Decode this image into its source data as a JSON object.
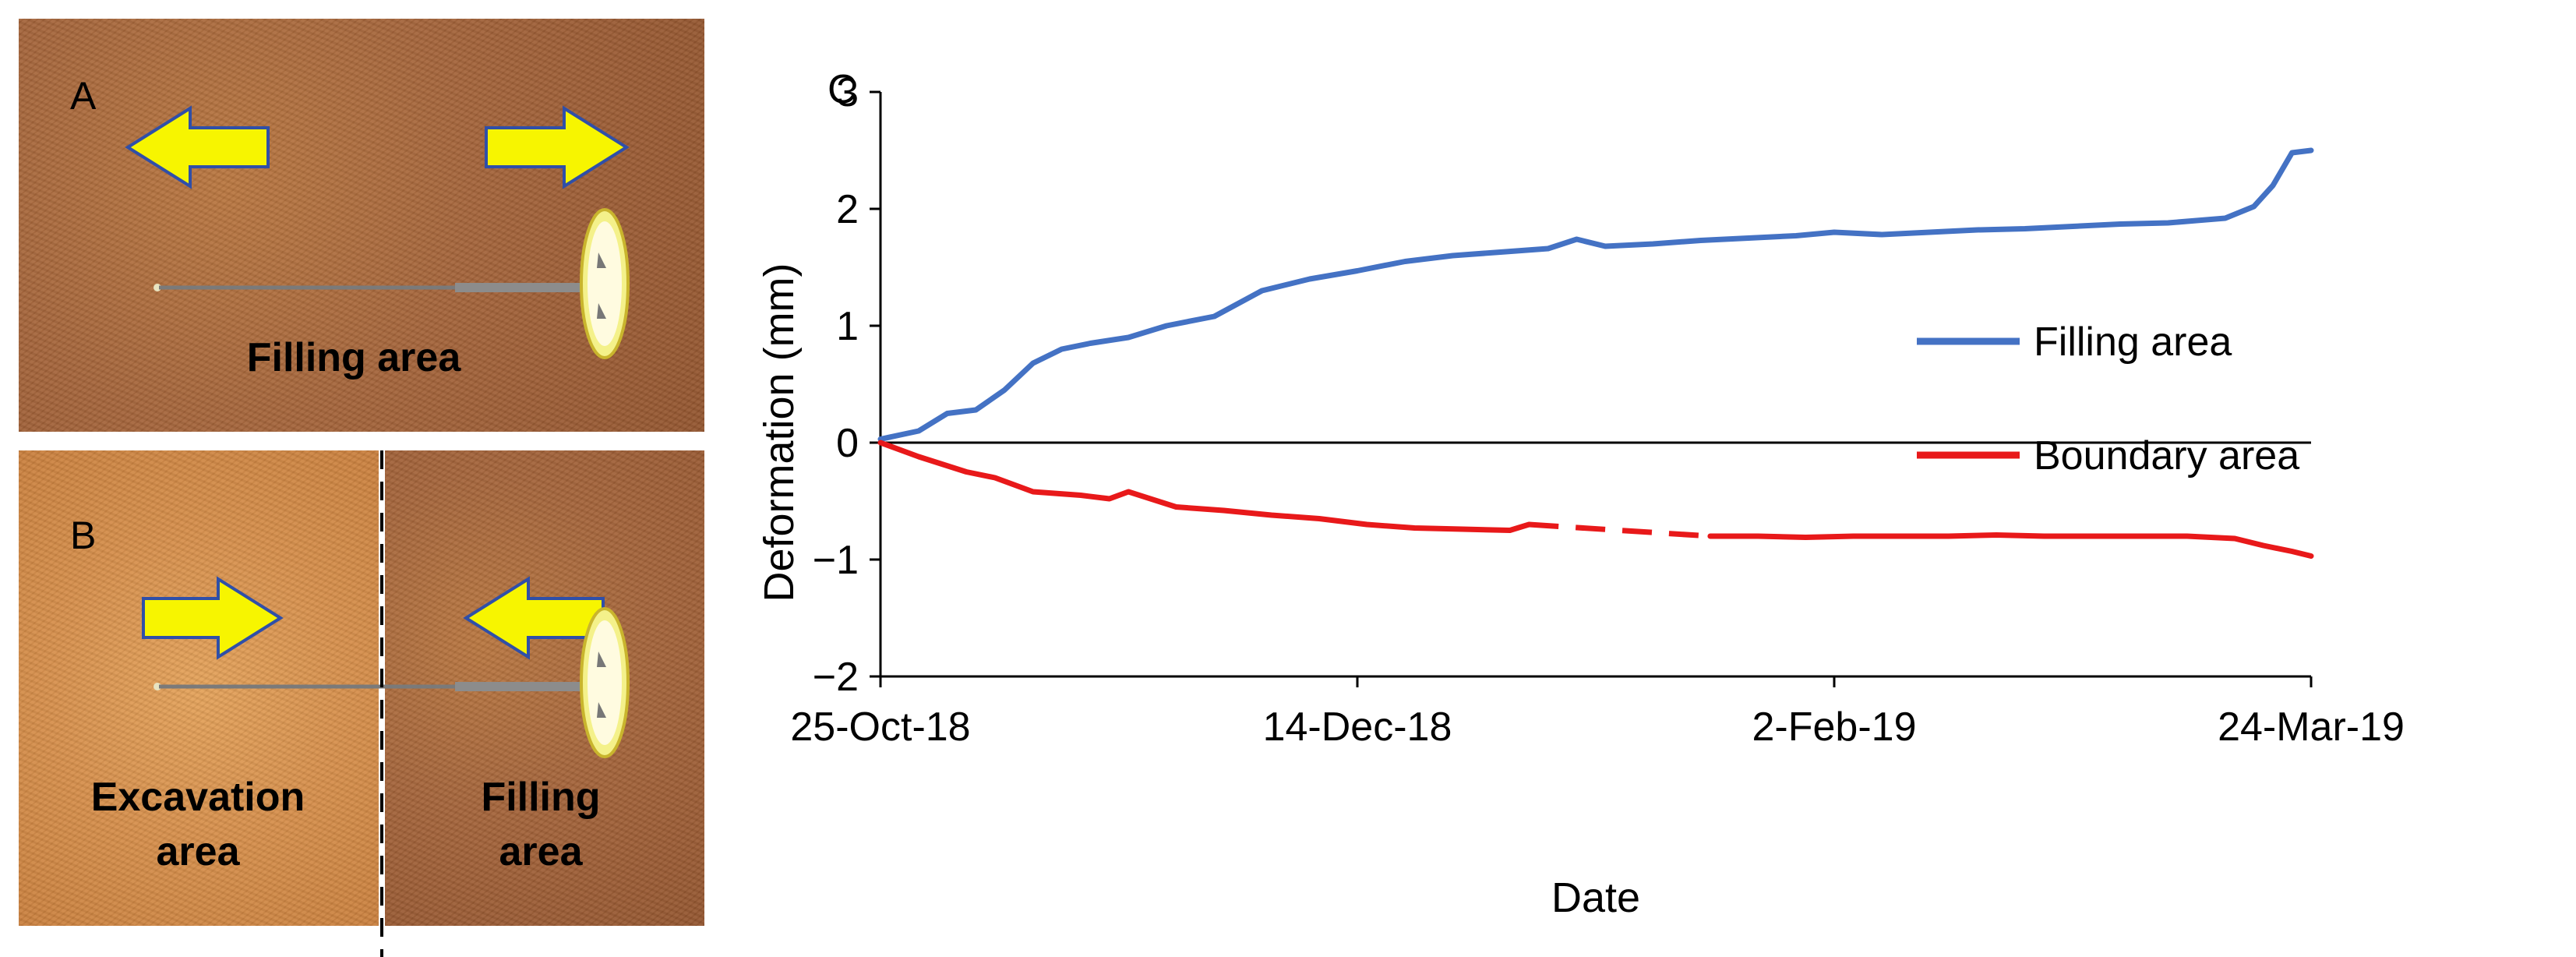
{
  "panels": {
    "a": {
      "letter": "A",
      "label": "Filling area"
    },
    "b": {
      "letter": "B",
      "label_left": "Excavation\narea",
      "label_right": "Filling\narea"
    },
    "c": {
      "letter": "C"
    }
  },
  "colors": {
    "arrow_fill": "#f7f500",
    "arrow_stroke": "#2f4fa8",
    "blue": "#4472c4",
    "red": "#e8191a"
  },
  "chart_data": {
    "type": "line",
    "title": "",
    "xlabel": "Date",
    "ylabel": "Deformation (mm)",
    "x_start": "25-Oct-18",
    "x_ticks": [
      "25-Oct-18",
      "14-Dec-18",
      "2-Feb-19",
      "24-Mar-19"
    ],
    "xlim": [
      "25-Oct-18",
      "24-Mar-19"
    ],
    "ylim": [
      -2,
      3
    ],
    "y_ticks": [
      "−2",
      "−1",
      "0",
      "1",
      "2",
      "3"
    ],
    "grid": false,
    "legend_position": "right",
    "series": [
      {
        "name": "Filling area",
        "color": "#4472c4",
        "style": "solid",
        "x": [
          "25-Oct-18",
          "29-Oct-18",
          "1-Nov-18",
          "4-Nov-18",
          "7-Nov-18",
          "10-Nov-18",
          "13-Nov-18",
          "16-Nov-18",
          "20-Nov-18",
          "24-Nov-18",
          "29-Nov-18",
          "4-Dec-18",
          "9-Dec-18",
          "14-Dec-18",
          "19-Dec-18",
          "24-Dec-18",
          "29-Dec-18",
          "3-Jan-19",
          "6-Jan-19",
          "9-Jan-19",
          "14-Jan-19",
          "19-Jan-19",
          "24-Jan-19",
          "29-Jan-19",
          "2-Feb-19",
          "7-Feb-19",
          "12-Feb-19",
          "17-Feb-19",
          "22-Feb-19",
          "27-Feb-19",
          "4-Mar-19",
          "9-Mar-19",
          "12-Mar-19",
          "15-Mar-19",
          "18-Mar-19",
          "20-Mar-19",
          "22-Mar-19",
          "24-Mar-19"
        ],
        "y": [
          0.03,
          0.1,
          0.25,
          0.28,
          0.45,
          0.68,
          0.8,
          0.85,
          0.9,
          1.0,
          1.08,
          1.3,
          1.4,
          1.47,
          1.55,
          1.6,
          1.63,
          1.66,
          1.74,
          1.68,
          1.7,
          1.73,
          1.75,
          1.77,
          1.8,
          1.78,
          1.8,
          1.82,
          1.83,
          1.85,
          1.87,
          1.88,
          1.9,
          1.92,
          2.02,
          2.2,
          2.48,
          2.5
        ]
      },
      {
        "name": "Boundary area",
        "color": "#e8191a",
        "style": "solid",
        "x": [
          "25-Oct-18",
          "29-Oct-18",
          "3-Nov-18",
          "6-Nov-18",
          "10-Nov-18",
          "15-Nov-18",
          "18-Nov-18",
          "20-Nov-18",
          "25-Nov-18",
          "30-Nov-18",
          "5-Dec-18",
          "10-Dec-18",
          "15-Dec-18",
          "20-Dec-18",
          "25-Dec-18",
          "30-Dec-18",
          "1-Jan-19"
        ],
        "y": [
          0.0,
          -0.12,
          -0.25,
          -0.3,
          -0.42,
          -0.45,
          -0.48,
          -0.42,
          -0.55,
          -0.58,
          -0.62,
          -0.65,
          -0.7,
          -0.73,
          -0.74,
          -0.75,
          -0.7
        ]
      },
      {
        "name": "Boundary area",
        "color": "#e8191a",
        "style": "dashed",
        "x": [
          "1-Jan-19",
          "20-Jan-19"
        ],
        "y": [
          -0.7,
          -0.8
        ]
      },
      {
        "name": "Boundary area",
        "color": "#e8191a",
        "style": "solid",
        "x": [
          "20-Jan-19",
          "25-Jan-19",
          "30-Jan-19",
          "4-Feb-19",
          "9-Feb-19",
          "14-Feb-19",
          "19-Feb-19",
          "24-Feb-19",
          "1-Mar-19",
          "6-Mar-19",
          "11-Mar-19",
          "16-Mar-19",
          "19-Mar-19",
          "22-Mar-19",
          "24-Mar-19"
        ],
        "y": [
          -0.8,
          -0.8,
          -0.81,
          -0.8,
          -0.8,
          -0.8,
          -0.79,
          -0.8,
          -0.8,
          -0.8,
          -0.8,
          -0.82,
          -0.88,
          -0.93,
          -0.97
        ]
      }
    ]
  }
}
